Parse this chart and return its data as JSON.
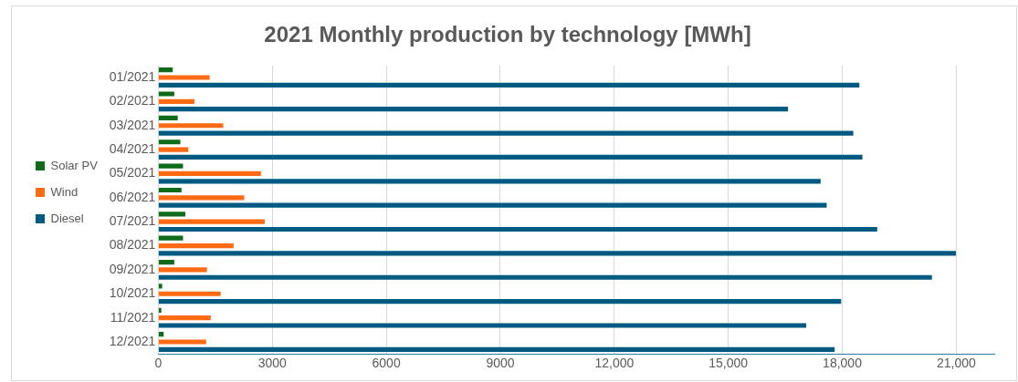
{
  "chart_data": {
    "type": "bar",
    "orientation": "horizontal",
    "title": "2021 Monthly production by technology [MWh]",
    "categories": [
      "01/2021",
      "02/2021",
      "03/2021",
      "04/2021",
      "05/2021",
      "06/2021",
      "07/2021",
      "08/2021",
      "09/2021",
      "10/2021",
      "11/2021",
      "12/2021"
    ],
    "series": [
      {
        "name": "Solar PV",
        "color": "#0e6b1a",
        "values": [
          380,
          420,
          510,
          580,
          650,
          610,
          710,
          650,
          420,
          100,
          80,
          140
        ]
      },
      {
        "name": "Wind",
        "color": "#ff6a13",
        "values": [
          1350,
          950,
          1710,
          790,
          2700,
          2260,
          2800,
          1980,
          1280,
          1640,
          1380,
          1260
        ]
      },
      {
        "name": "Diesel",
        "color": "#005a82",
        "values": [
          18450,
          16570,
          18290,
          18530,
          17430,
          17590,
          18920,
          20990,
          20360,
          17970,
          17050,
          17800
        ]
      }
    ],
    "xlim": [
      0,
      22000
    ],
    "xticks": [
      0,
      3000,
      6000,
      9000,
      {
        "value": 12000,
        "label": "12,000"
      },
      {
        "value": 15000,
        "label": "15,000"
      },
      {
        "value": 18000,
        "label": "18,000"
      },
      {
        "value": 21000,
        "label": "21,000"
      }
    ],
    "grid": "x",
    "legend": "left"
  }
}
